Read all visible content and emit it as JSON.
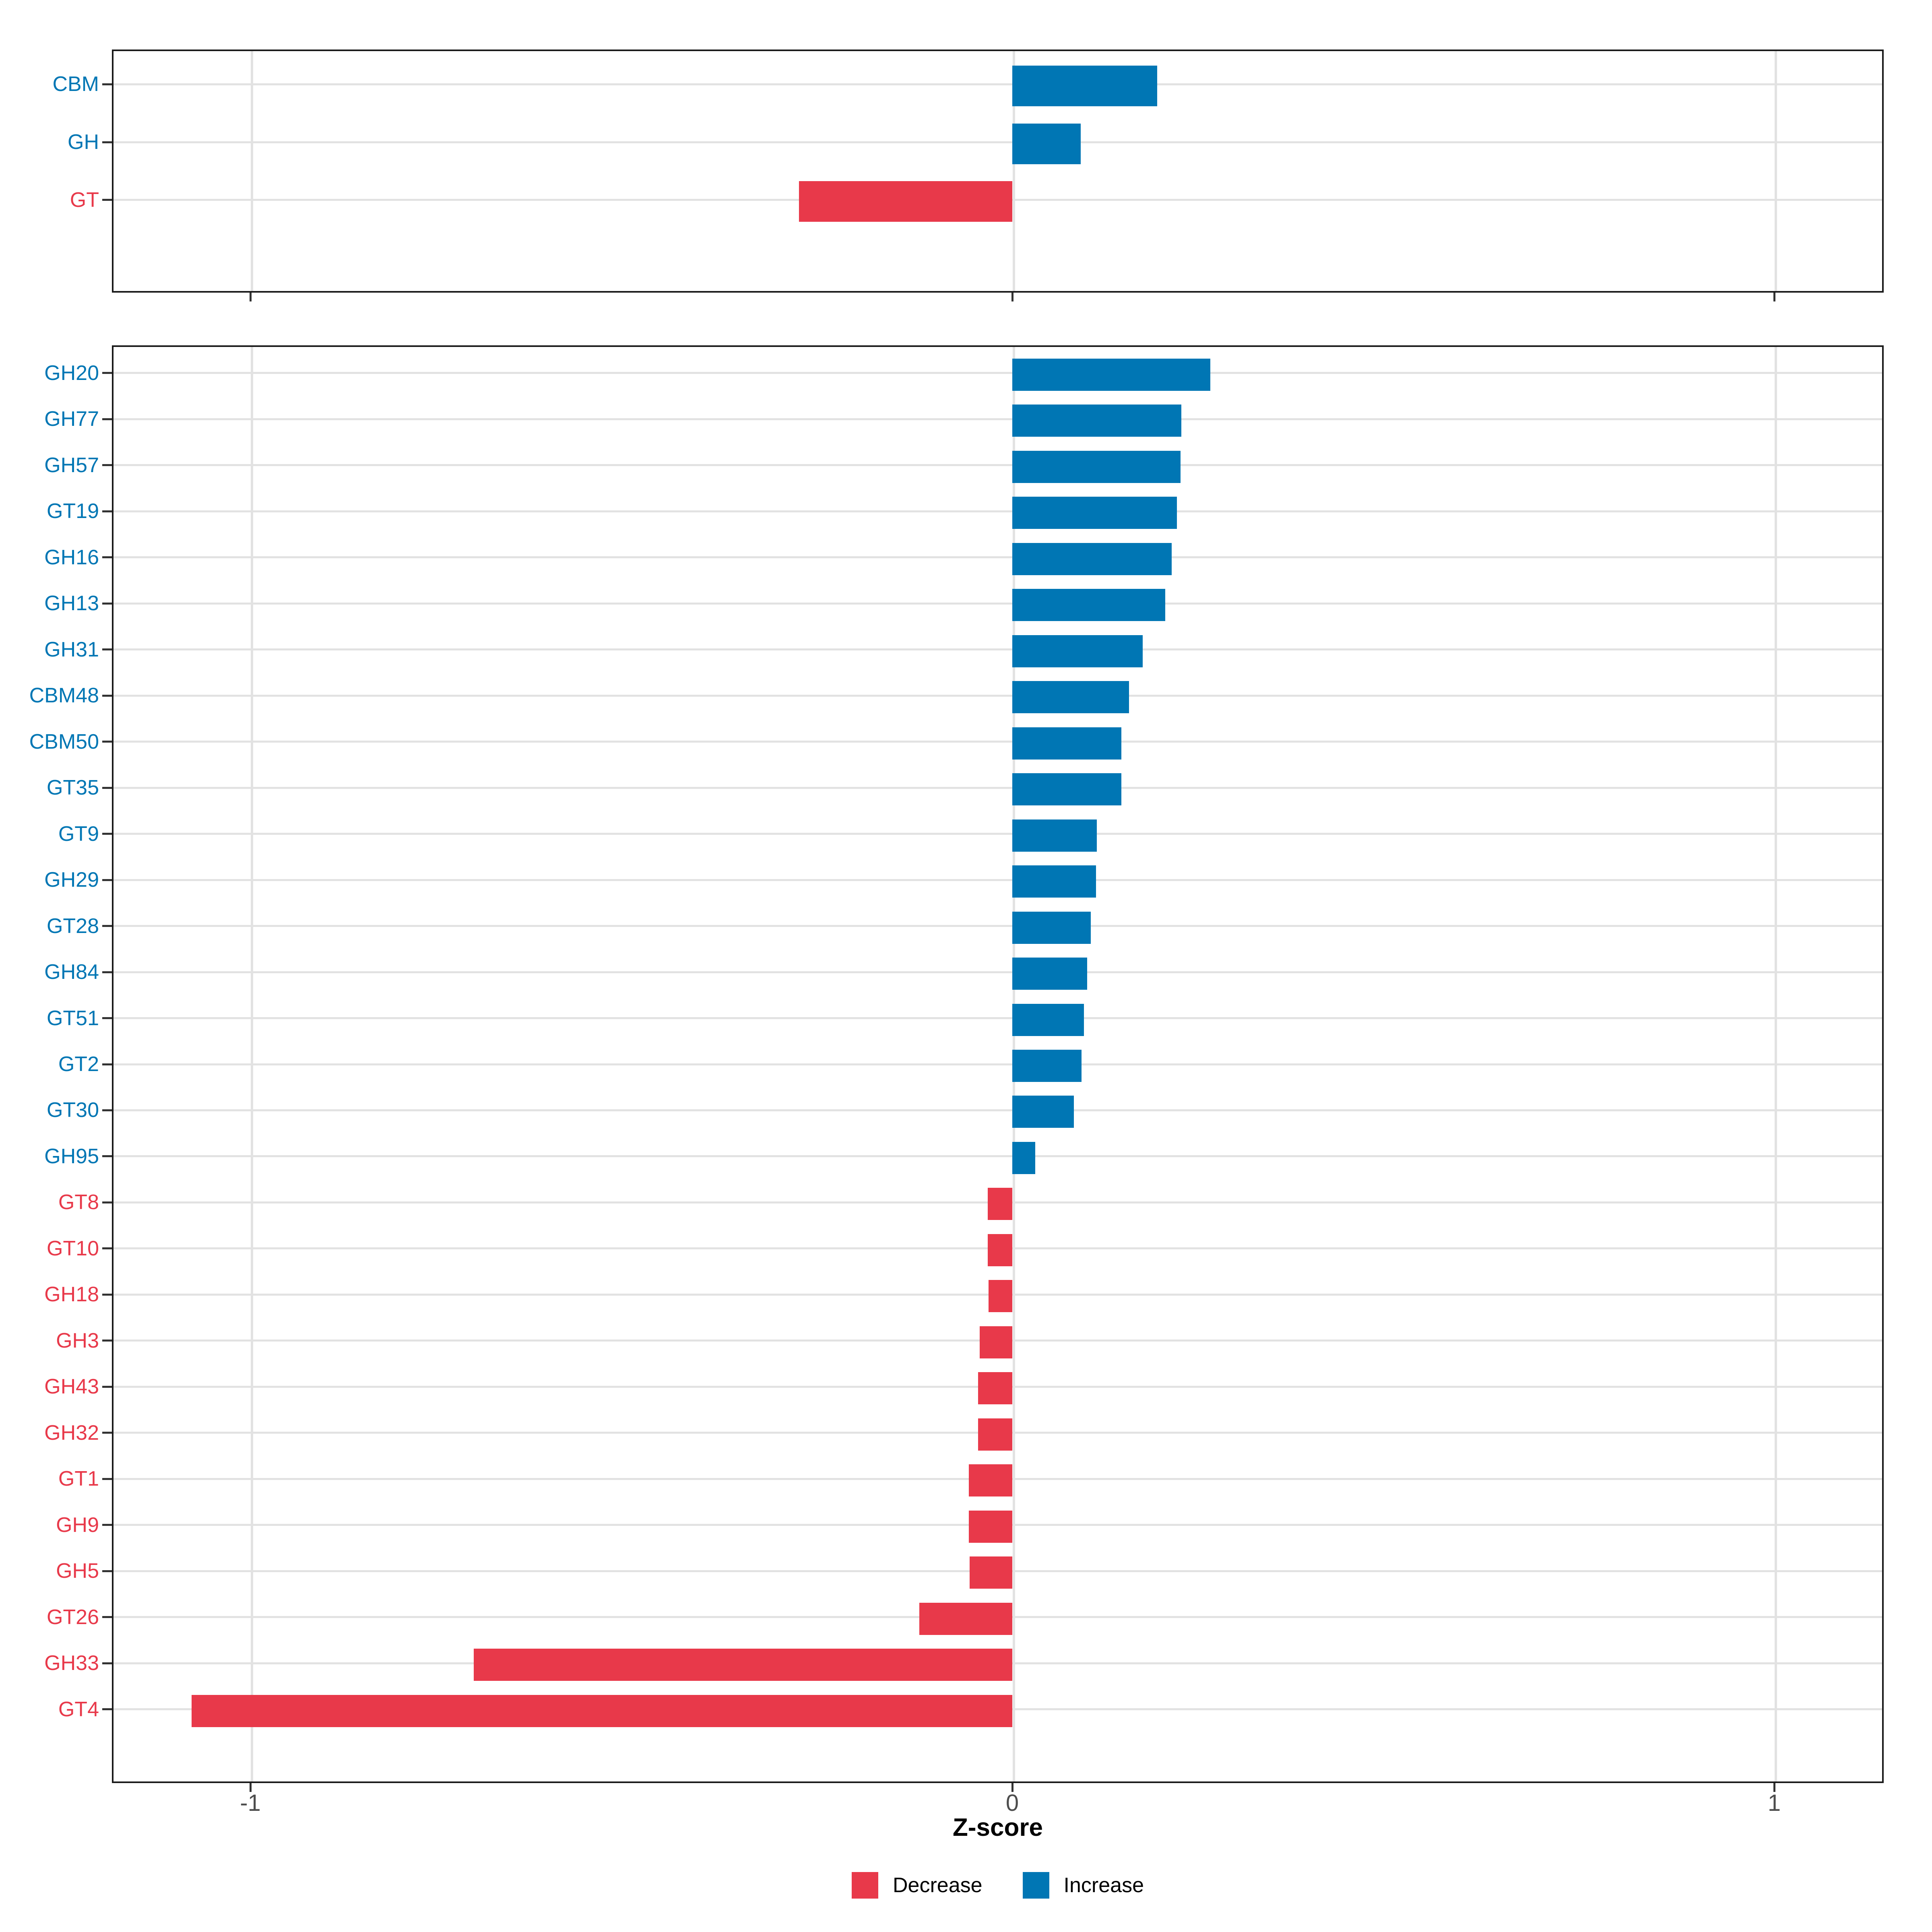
{
  "figure": {
    "xlabel": "Z-score",
    "x_axis": {
      "tick_values": [
        -1,
        0,
        1
      ],
      "tick_labels": [
        "-1",
        "0",
        "1"
      ]
    },
    "legend": [
      {
        "key": "decrease",
        "label": "Decrease",
        "color": "#e8394a"
      },
      {
        "key": "increase",
        "label": "Increase",
        "color": "#0076b4"
      }
    ],
    "colors": {
      "increase": "#0076b4",
      "decrease": "#e8394a",
      "grid": "#e2e2e2",
      "panel_border": "#1a1a1a",
      "tick": "#333333",
      "tick_label": "#4d4d4d"
    }
  },
  "chart_data": [
    {
      "type": "bar",
      "orientation": "horizontal",
      "panel": "cazyme-classes",
      "xlabel": "Z-score",
      "xlim": [
        -1.18,
        1.14
      ],
      "grid": true,
      "legend_position": "bottom",
      "categories": [
        "CBM",
        "GH",
        "GT"
      ],
      "values": [
        0.19,
        0.09,
        -0.28
      ]
    },
    {
      "type": "bar",
      "orientation": "horizontal",
      "panel": "cazyme-families",
      "xlabel": "Z-score",
      "xlim": [
        -1.18,
        1.14
      ],
      "grid": true,
      "legend_position": "bottom",
      "categories": [
        "GH20",
        "GH77",
        "GH57",
        "GT19",
        "GH16",
        "GH13",
        "GH31",
        "CBM48",
        "CBM50",
        "GT35",
        "GT9",
        "GH29",
        "GT28",
        "GH84",
        "GT51",
        "GT2",
        "GT30",
        "GH95",
        "GT8",
        "GT10",
        "GH18",
        "GH3",
        "GH43",
        "GH32",
        "GT1",
        "GH9",
        "GH5",
        "GT26",
        "GH33",
        "GT4"
      ],
      "values": [
        0.26,
        0.222,
        0.221,
        0.216,
        0.209,
        0.201,
        0.171,
        0.153,
        0.143,
        0.143,
        0.111,
        0.11,
        0.103,
        0.098,
        0.094,
        0.091,
        0.081,
        0.03,
        -0.032,
        -0.032,
        -0.031,
        -0.043,
        -0.045,
        -0.045,
        -0.057,
        -0.057,
        -0.056,
        -0.122,
        -0.707,
        -1.077
      ]
    }
  ]
}
